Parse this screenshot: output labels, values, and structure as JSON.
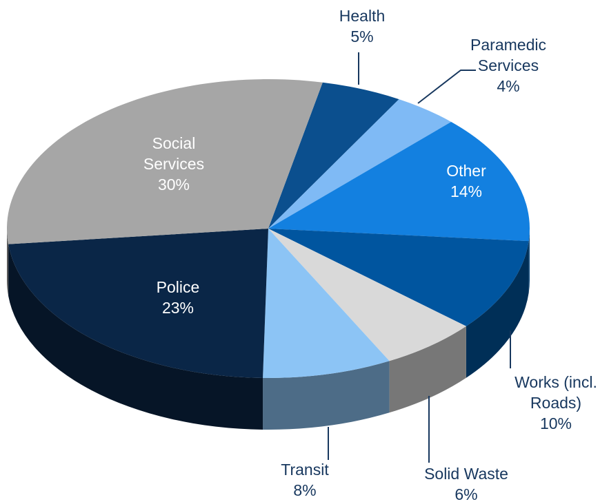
{
  "chart_data": {
    "type": "pie3d",
    "categories": [
      "Health",
      "Paramedic Services",
      "Other",
      "Works (incl. Roads)",
      "Solid Waste",
      "Transit",
      "Police",
      "Social Services"
    ],
    "values": [
      5,
      4,
      14,
      10,
      6,
      8,
      23,
      30
    ],
    "value_labels": [
      "5%",
      "4%",
      "14%",
      "10%",
      "6%",
      "8%",
      "23%",
      "30%"
    ],
    "colors": [
      "#0b4f8e",
      "#7fbaf5",
      "#1380e0",
      "#00559f",
      "#d9d9d9",
      "#8cc4f5",
      "#0a2647",
      "#a6a6a6"
    ]
  }
}
